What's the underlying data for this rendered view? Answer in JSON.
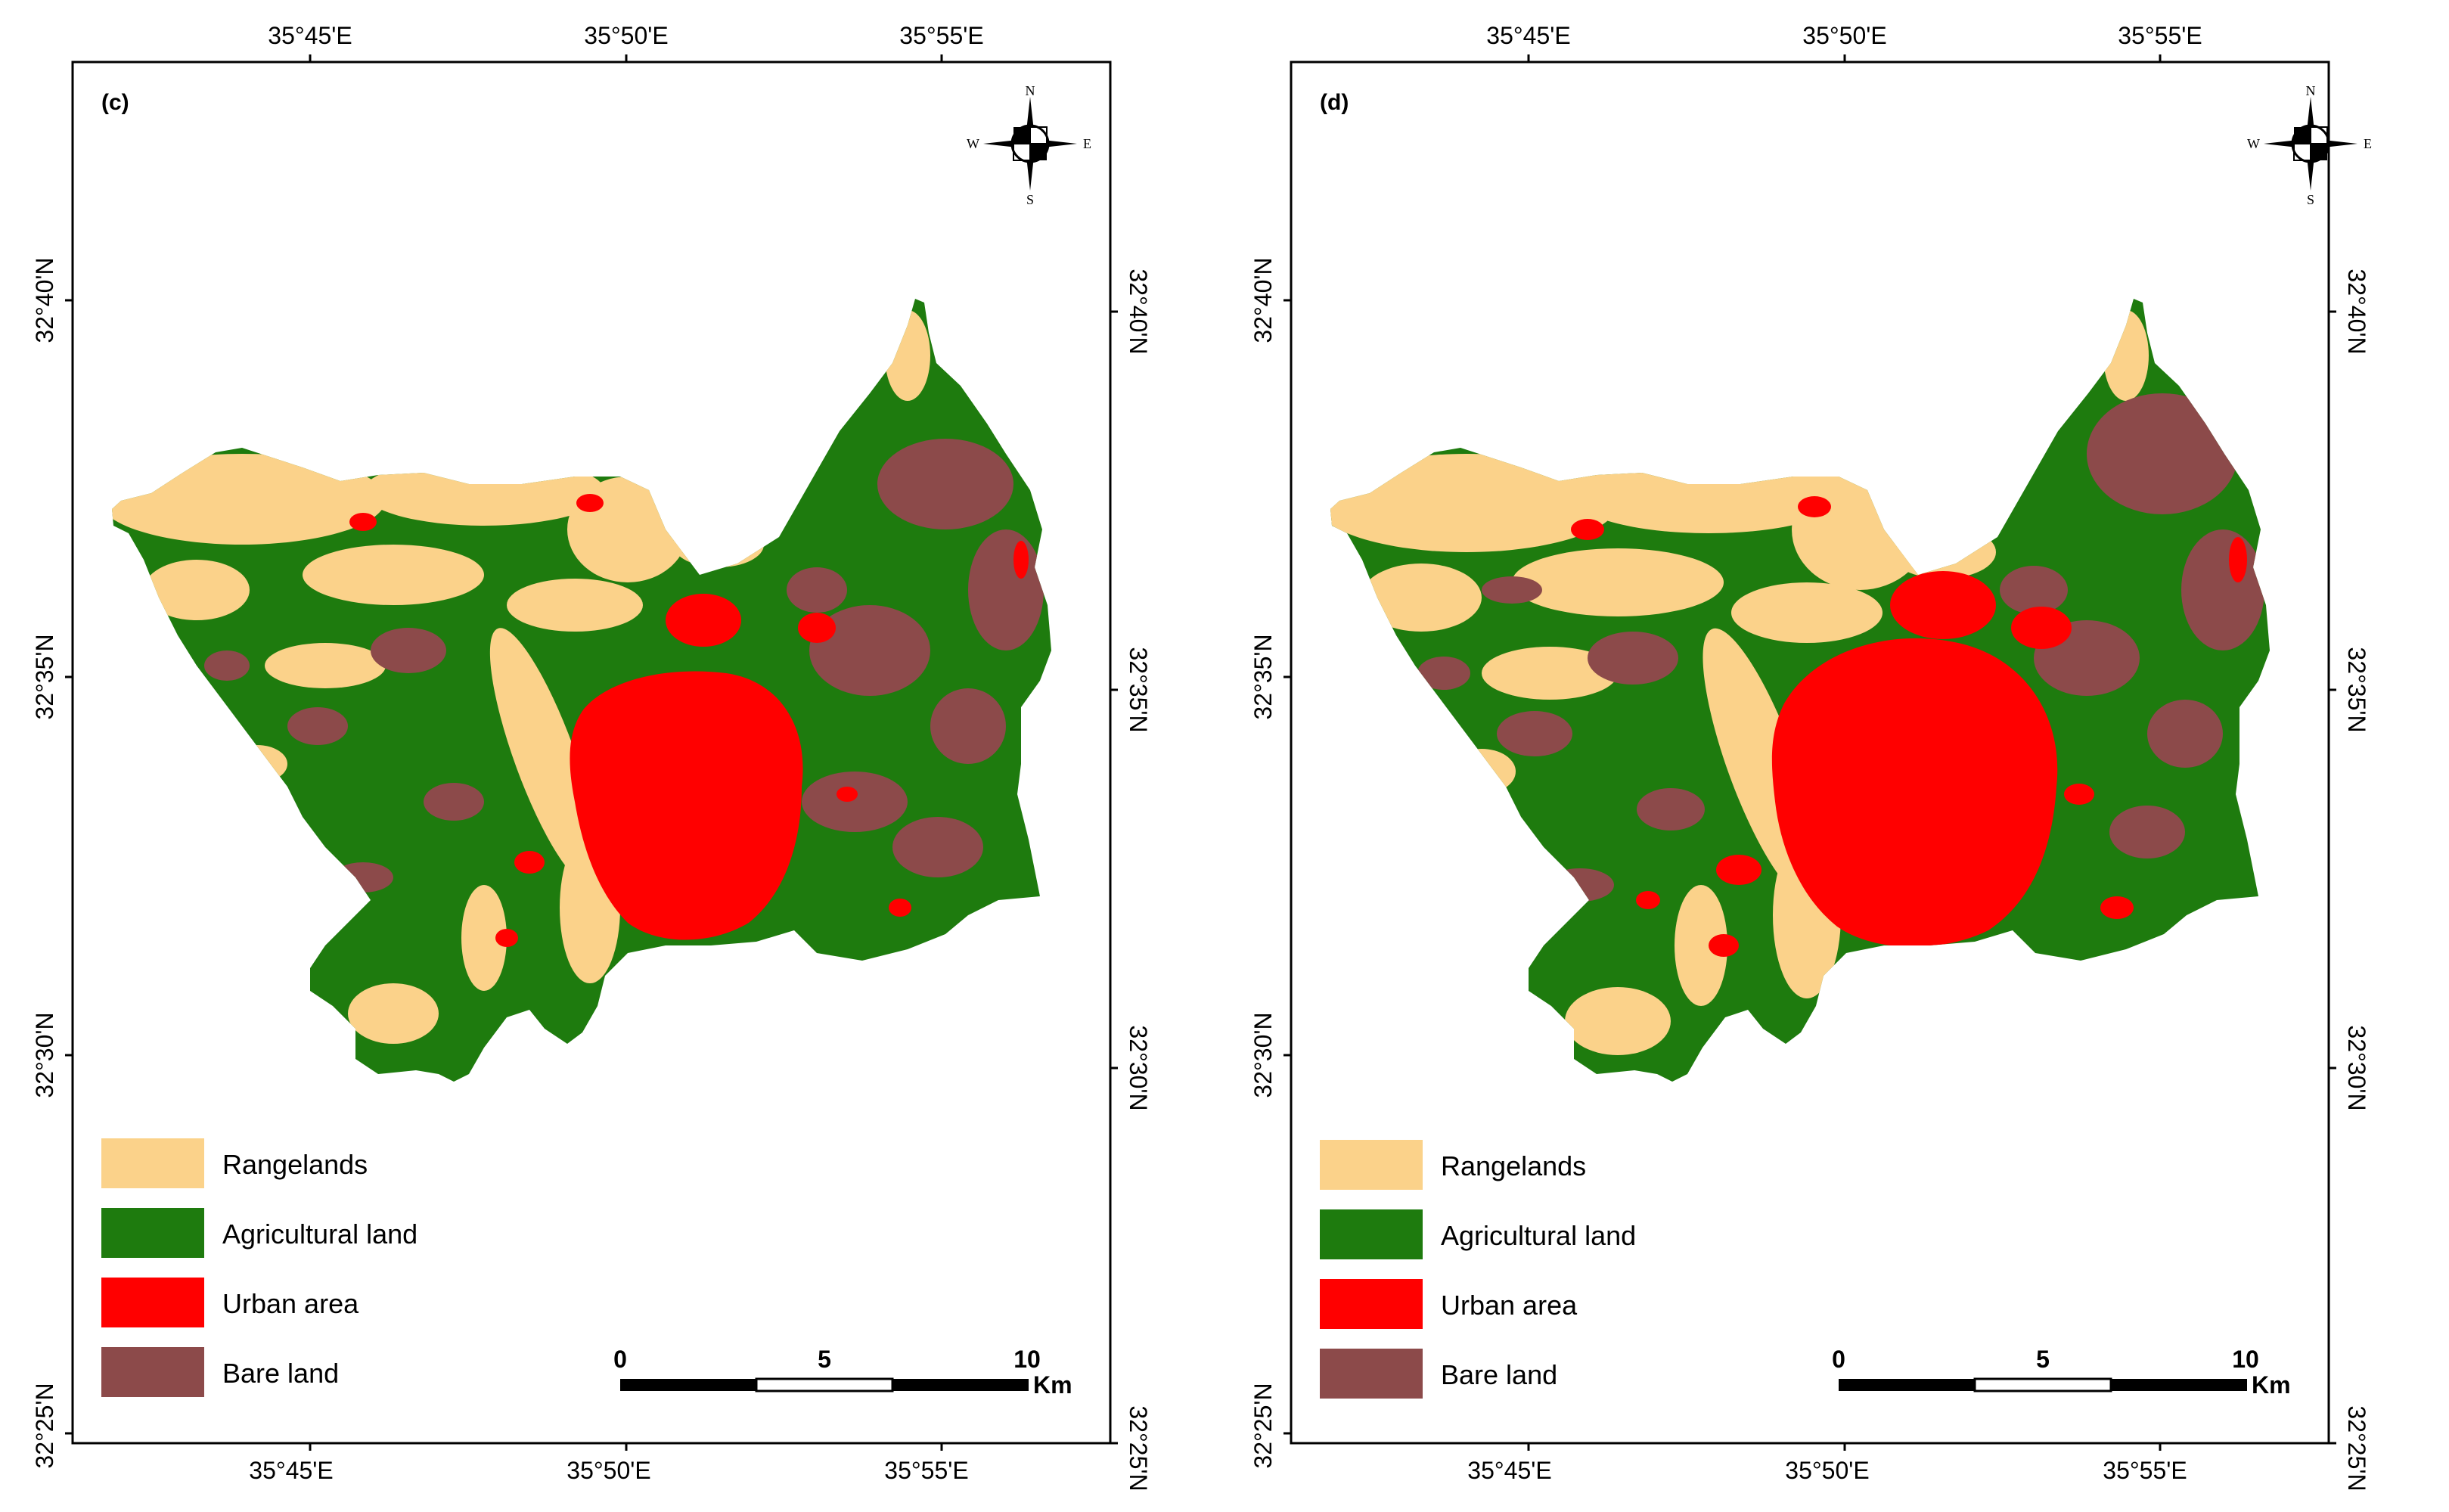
{
  "colors": {
    "rangelands": "#FBD28A",
    "agricultural": "#1E7B0E",
    "urban": "#FF0000",
    "bare": "#8C4A4A"
  },
  "icons": [
    "north-arrow-compass-icon"
  ],
  "panels": [
    {
      "label": "(c)",
      "top_ticks": [
        "35°45'E",
        "35°50'E",
        "35°55'E"
      ],
      "bottom_ticks": [
        "35°45'E",
        "35°50'E",
        "35°55'E"
      ],
      "left_ticks": [
        "32°40'N",
        "32°35'N",
        "32°30'N",
        "32°25'N"
      ],
      "right_ticks": [
        "32°40'N",
        "32°35'N",
        "32°30'N",
        "32°25'N"
      ],
      "compass": {
        "n": "N",
        "s": "S",
        "e": "E",
        "w": "W"
      },
      "legend": [
        {
          "key": "rangelands",
          "label": "Rangelands"
        },
        {
          "key": "agricultural",
          "label": "Agricultural land"
        },
        {
          "key": "urban",
          "label": "Urban area"
        },
        {
          "key": "bare",
          "label": "Bare land"
        }
      ],
      "scale": {
        "labels": [
          "0",
          "5",
          "10"
        ],
        "unit": "Km"
      }
    },
    {
      "label": "(d)",
      "top_ticks": [
        "35°45'E",
        "35°50'E",
        "35°55'E"
      ],
      "bottom_ticks": [
        "35°45'E",
        "35°50'E",
        "35°55'E"
      ],
      "left_ticks": [
        "32°40'N",
        "32°35'N",
        "32°30'N",
        "32°25'N"
      ],
      "right_ticks": [
        "32°40'N",
        "32°35'N",
        "32°30'N",
        "32°25'N"
      ],
      "compass": {
        "n": "N",
        "s": "S",
        "e": "E",
        "w": "W"
      },
      "legend": [
        {
          "key": "rangelands",
          "label": "Rangelands"
        },
        {
          "key": "agricultural",
          "label": "Agricultural land"
        },
        {
          "key": "urban",
          "label": "Urban area"
        },
        {
          "key": "bare",
          "label": "Bare land"
        }
      ],
      "scale": {
        "labels": [
          "0",
          "5",
          "10"
        ],
        "unit": "Km"
      }
    }
  ]
}
